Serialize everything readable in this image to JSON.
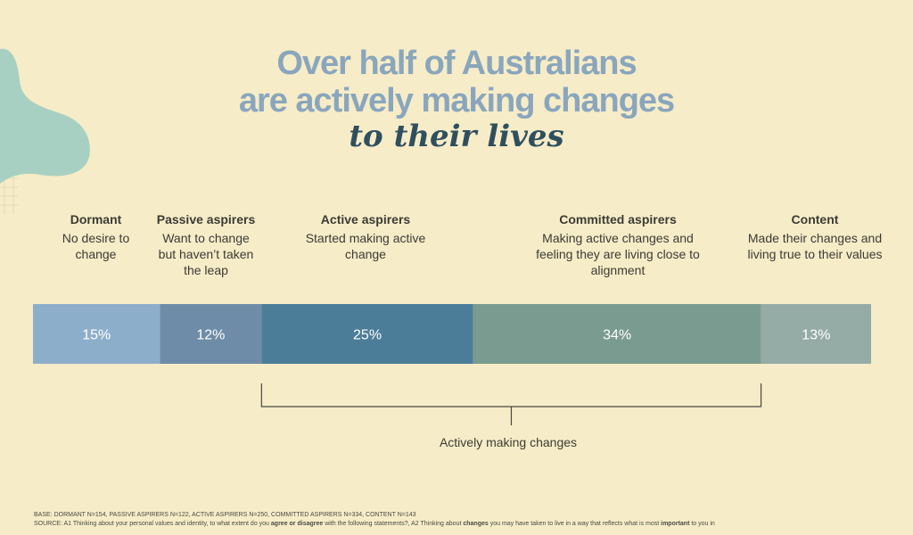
{
  "title": {
    "line1": "Over half of Australians",
    "line2": "are actively making changes",
    "subtitle": "to their lives"
  },
  "chart_data": {
    "type": "bar",
    "orientation": "horizontal-stacked",
    "categories": [
      "Dormant",
      "Passive aspirers",
      "Active aspirers",
      "Committed aspirers",
      "Content"
    ],
    "descriptions": [
      "No desire to change",
      "Want to change but haven’t taken the leap",
      "Started making active change",
      "Making active changes and feeling they are living close to alignment",
      "Made their changes and living true to their values"
    ],
    "values": [
      15,
      12,
      25,
      34,
      13
    ],
    "labels": [
      "15%",
      "12%",
      "25%",
      "34%",
      "13%"
    ],
    "colors": [
      "#8daecb",
      "#6e8ca8",
      "#4b7d98",
      "#7a9b8f",
      "#95aca6"
    ],
    "bracket": {
      "label": "Actively making changes",
      "from_category": "Active aspirers",
      "to_category": "Committed aspirers"
    }
  },
  "footer": {
    "base": "BASE: DORMANT N=154, PASSIVE ASPIRERS N=122, ACTIVE ASPIRERS N=250, COMMITTED ASPIRERS N=334, CONTENT N=143",
    "source_a": "SOURCE: A1 Thinking about your personal values and identity, to what extent do you ",
    "source_b": "agree or disagree",
    "source_c": " with the following statements?, A2 Thinking about ",
    "source_d": "changes",
    "source_e": " you may have taken to live in a way that reflects what is most ",
    "source_f": "important",
    "source_g": " to you in"
  }
}
